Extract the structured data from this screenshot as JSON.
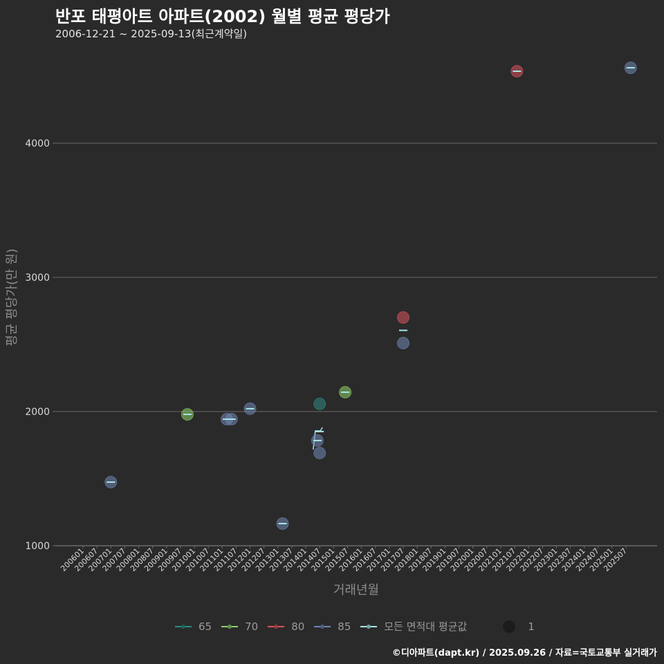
{
  "header": {
    "title": "반포 태평아트 아파트(2002) 월별 평균 평당가",
    "subtitle": "2006-12-21 ~ 2025-09-13(최근계약일)"
  },
  "footer": {
    "credit": "©디아파트(dapt.kr) / 2025.09.26 / 자료=국토교통부 실거래가"
  },
  "legend": {
    "items": [
      {
        "label": "65",
        "color": "#2e8b84"
      },
      {
        "label": "70",
        "color": "#8fd16a"
      },
      {
        "label": "80",
        "color": "#d9545c"
      },
      {
        "label": "85",
        "color": "#6f86b3"
      },
      {
        "label": "모든 면적대 평균값",
        "color": "#a8e6e6"
      }
    ],
    "size_label": "1"
  },
  "chart_data": {
    "type": "scatter",
    "title": "반포 태평아트 아파트(2002) 월별 평균 평당가",
    "subtitle": "2006-12-21 ~ 2025-09-13(최근계약일)",
    "xlabel": "거래년월",
    "ylabel": "평균 평당가(만 원)",
    "ylim": [
      1000,
      4650
    ],
    "yticks": [
      1000,
      2000,
      3000,
      4000
    ],
    "grid": true,
    "legend_position": "bottom",
    "x_ticks": [
      "200601",
      "200607",
      "200701",
      "200707",
      "200801",
      "200807",
      "200901",
      "200907",
      "201001",
      "201007",
      "201101",
      "201107",
      "201201",
      "201207",
      "201301",
      "201307",
      "201401",
      "201407",
      "201501",
      "201507",
      "201601",
      "201607",
      "201701",
      "201707",
      "201801",
      "201807",
      "201901",
      "201907",
      "202001",
      "202007",
      "202101",
      "202107",
      "202201",
      "202207",
      "202301",
      "202307",
      "202401",
      "202407",
      "202501",
      "202507"
    ],
    "series": [
      {
        "name": "65",
        "color": "#2e8b84",
        "points": [
          {
            "x": "201407",
            "y": 2057
          }
        ]
      },
      {
        "name": "70",
        "color": "#8fd16a",
        "points": [
          {
            "x": "200910",
            "y": 1979
          },
          {
            "x": "201506",
            "y": 2144
          }
        ]
      },
      {
        "name": "80",
        "color": "#d9545c",
        "points": [
          {
            "x": "201707",
            "y": 2701
          },
          {
            "x": "202108",
            "y": 4536
          }
        ]
      },
      {
        "name": "85",
        "color": "#6f86b3",
        "points": [
          {
            "x": "200701",
            "y": 1474
          },
          {
            "x": "201103",
            "y": 1943
          },
          {
            "x": "201105",
            "y": 1943
          },
          {
            "x": "201201",
            "y": 2021
          },
          {
            "x": "201303",
            "y": 1165
          },
          {
            "x": "201406",
            "y": 1784
          },
          {
            "x": "201407",
            "y": 1691
          },
          {
            "x": "201707",
            "y": 2510
          },
          {
            "x": "202509",
            "y": 4562
          }
        ]
      },
      {
        "name": "모든 면적대 평균값",
        "color": "#a8e6e6",
        "points": [
          {
            "x": "200701",
            "y": 1474
          },
          {
            "x": "200910",
            "y": 1979
          },
          {
            "x": "201103",
            "y": 1943
          },
          {
            "x": "201105",
            "y": 1943
          },
          {
            "x": "201201",
            "y": 2021
          },
          {
            "x": "201303",
            "y": 1165
          },
          {
            "x": "201406",
            "y": 1784
          },
          {
            "x": "201407",
            "y": 1851
          },
          {
            "x": "201506",
            "y": 2144
          },
          {
            "x": "201707",
            "y": 2605
          },
          {
            "x": "202108",
            "y": 4536
          },
          {
            "x": "202509",
            "y": 4562
          }
        ]
      }
    ]
  }
}
